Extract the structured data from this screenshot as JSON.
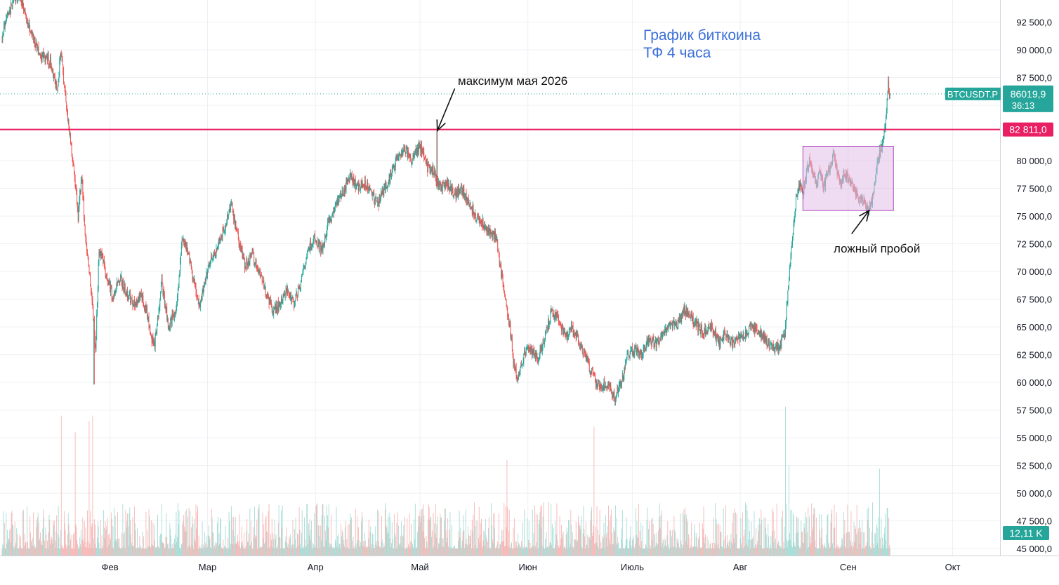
{
  "chart_data": {
    "type": "candlestick",
    "symbol": "BTCUSDT.P",
    "title_line1": "График биткоина",
    "title_line2": "ТФ 4 часа",
    "ylim": [
      44500,
      95000
    ],
    "y_ticks": [
      {
        "v": 92500,
        "label": "92 500,0"
      },
      {
        "v": 90000,
        "label": "90 000,0"
      },
      {
        "v": 87500,
        "label": "87 500,0"
      },
      {
        "v": 85000,
        "label": ""
      },
      {
        "v": 80000,
        "label": "80 000,0"
      },
      {
        "v": 77500,
        "label": "77 500,0"
      },
      {
        "v": 75000,
        "label": "75 000,0"
      },
      {
        "v": 72500,
        "label": "72 500,0"
      },
      {
        "v": 70000,
        "label": "70 000,0"
      },
      {
        "v": 67500,
        "label": "67 500,0"
      },
      {
        "v": 65000,
        "label": "65 000,0"
      },
      {
        "v": 62500,
        "label": "62 500,0"
      },
      {
        "v": 60000,
        "label": "60 000,0"
      },
      {
        "v": 57500,
        "label": "57 500,0"
      },
      {
        "v": 55000,
        "label": "55 000,0"
      },
      {
        "v": 52500,
        "label": "52 500,0"
      },
      {
        "v": 50000,
        "label": "50 000,0"
      },
      {
        "v": 47500,
        "label": "47 500,0"
      },
      {
        "v": 45000,
        "label": "45 000,0"
      }
    ],
    "x_months": [
      "Фев",
      "Мар",
      "Апр",
      "Май",
      "Июн",
      "Июль",
      "Авг",
      "Сен",
      "Окт"
    ],
    "month_days": [
      31,
      59,
      90,
      120,
      151,
      181,
      212,
      243,
      273
    ],
    "x_range_days": [
      0,
      294
    ],
    "last_day": 255,
    "anchors": [
      [
        0,
        91000
      ],
      [
        2,
        93500
      ],
      [
        5,
        95000
      ],
      [
        8,
        92000
      ],
      [
        11,
        89500
      ],
      [
        14,
        89000
      ],
      [
        16,
        86500
      ],
      [
        17,
        89800
      ],
      [
        19,
        84000
      ],
      [
        20,
        81500
      ],
      [
        21,
        78500
      ],
      [
        22,
        75000
      ],
      [
        23,
        78800
      ],
      [
        24,
        73500
      ],
      [
        25,
        70500
      ],
      [
        26,
        67500
      ],
      [
        27,
        63000
      ],
      [
        28,
        72000
      ],
      [
        30,
        70000
      ],
      [
        32,
        67500
      ],
      [
        34,
        69500
      ],
      [
        36,
        68000
      ],
      [
        38,
        67000
      ],
      [
        40,
        67800
      ],
      [
        42,
        66000
      ],
      [
        43,
        64000
      ],
      [
        44,
        63500
      ],
      [
        46,
        69000
      ],
      [
        48,
        65000
      ],
      [
        50,
        66500
      ],
      [
        52,
        73000
      ],
      [
        54,
        71000
      ],
      [
        56,
        68000
      ],
      [
        57,
        67000
      ],
      [
        58,
        68500
      ],
      [
        60,
        71000
      ],
      [
        62,
        72000
      ],
      [
        64,
        74000
      ],
      [
        66,
        76000
      ],
      [
        68,
        73000
      ],
      [
        70,
        70500
      ],
      [
        72,
        71500
      ],
      [
        74,
        70000
      ],
      [
        76,
        68000
      ],
      [
        78,
        66500
      ],
      [
        80,
        67000
      ],
      [
        82,
        68500
      ],
      [
        84,
        67000
      ],
      [
        86,
        69000
      ],
      [
        88,
        72000
      ],
      [
        90,
        73000
      ],
      [
        92,
        72000
      ],
      [
        94,
        74500
      ],
      [
        96,
        76000
      ],
      [
        98,
        77000
      ],
      [
        100,
        78800
      ],
      [
        102,
        77500
      ],
      [
        104,
        78000
      ],
      [
        106,
        77200
      ],
      [
        108,
        76000
      ],
      [
        110,
        77500
      ],
      [
        112,
        79000
      ],
      [
        114,
        80500
      ],
      [
        116,
        81000
      ],
      [
        118,
        80000
      ],
      [
        120,
        81500
      ],
      [
        122,
        79500
      ],
      [
        124,
        79000
      ],
      [
        126,
        77500
      ],
      [
        128,
        78000
      ],
      [
        130,
        76800
      ],
      [
        132,
        77500
      ],
      [
        134,
        76500
      ],
      [
        136,
        75000
      ],
      [
        138,
        74500
      ],
      [
        140,
        73500
      ],
      [
        142,
        73200
      ],
      [
        143,
        71000
      ],
      [
        144,
        69000
      ],
      [
        145,
        67000
      ],
      [
        146,
        65000
      ],
      [
        147,
        62000
      ],
      [
        148,
        60500
      ],
      [
        149,
        61000
      ],
      [
        150,
        62500
      ],
      [
        152,
        63000
      ],
      [
        154,
        62000
      ],
      [
        156,
        64000
      ],
      [
        158,
        66500
      ],
      [
        160,
        65500
      ],
      [
        162,
        64000
      ],
      [
        164,
        65000
      ],
      [
        166,
        63500
      ],
      [
        168,
        62000
      ],
      [
        170,
        60500
      ],
      [
        172,
        59500
      ],
      [
        174,
        60000
      ],
      [
        176,
        58500
      ],
      [
        178,
        60000
      ],
      [
        180,
        62500
      ],
      [
        182,
        63000
      ],
      [
        184,
        62500
      ],
      [
        186,
        64000
      ],
      [
        188,
        63500
      ],
      [
        190,
        64500
      ],
      [
        192,
        65500
      ],
      [
        194,
        65000
      ],
      [
        196,
        66500
      ],
      [
        198,
        66000
      ],
      [
        200,
        65000
      ],
      [
        202,
        64500
      ],
      [
        204,
        65000
      ],
      [
        206,
        63500
      ],
      [
        208,
        64500
      ],
      [
        210,
        63500
      ],
      [
        212,
        64000
      ],
      [
        214,
        64500
      ],
      [
        216,
        65000
      ],
      [
        218,
        64500
      ],
      [
        220,
        63500
      ],
      [
        222,
        63000
      ],
      [
        224,
        63500
      ],
      [
        225,
        64500
      ],
      [
        226,
        69000
      ],
      [
        227,
        72500
      ],
      [
        228,
        76000
      ],
      [
        229,
        78000
      ],
      [
        230,
        77000
      ],
      [
        231,
        78500
      ],
      [
        232,
        80000
      ],
      [
        233,
        79000
      ],
      [
        234,
        78000
      ],
      [
        235,
        79000
      ],
      [
        236,
        77500
      ],
      [
        237,
        78500
      ],
      [
        238,
        79500
      ],
      [
        239,
        80500
      ],
      [
        240,
        79000
      ],
      [
        241,
        78000
      ],
      [
        242,
        79000
      ],
      [
        243,
        78500
      ],
      [
        244,
        78000
      ],
      [
        245,
        77500
      ],
      [
        246,
        76500
      ],
      [
        247,
        77000
      ],
      [
        248,
        76000
      ],
      [
        249,
        75800
      ],
      [
        250,
        76500
      ],
      [
        251,
        78500
      ],
      [
        252,
        80500
      ],
      [
        253,
        81500
      ],
      [
        254,
        83500
      ],
      [
        254.6,
        87000
      ],
      [
        255,
        86020
      ]
    ],
    "volume_spikes": [
      [
        17,
        57000
      ],
      [
        21,
        55500
      ],
      [
        25,
        56500
      ],
      [
        26,
        57000
      ],
      [
        145,
        53000
      ],
      [
        170,
        56000
      ],
      [
        225,
        57800
      ],
      [
        226,
        52500
      ],
      [
        252,
        52200
      ]
    ],
    "last_price": {
      "v": 86019.9,
      "label": "86019,9",
      "countdown": "36:13"
    },
    "horizontal_line": {
      "v": 82811,
      "label": "82 811,0"
    },
    "volume_axis_label": "12,11 K",
    "box": {
      "x0_day": 230,
      "x1_day": 256,
      "y0": 75500,
      "y1": 81300
    },
    "annotations": [
      {
        "text": "максимум мая 2026",
        "arrow_tip": [
          125,
          82700
        ],
        "arrow_tail": [
          130,
          86500
        ]
      },
      {
        "text": "ложный пробой",
        "arrow_tip": [
          249,
          75500
        ],
        "arrow_tail": [
          244,
          73400
        ]
      }
    ],
    "colors": {
      "up": "#26a69a",
      "down": "#ef5350",
      "level": "#e91e63",
      "box_fill": "#e1bee7",
      "box_stroke": "#ab47bc",
      "title": "#3a6fd8",
      "price_dotted": "#26a69a"
    }
  }
}
